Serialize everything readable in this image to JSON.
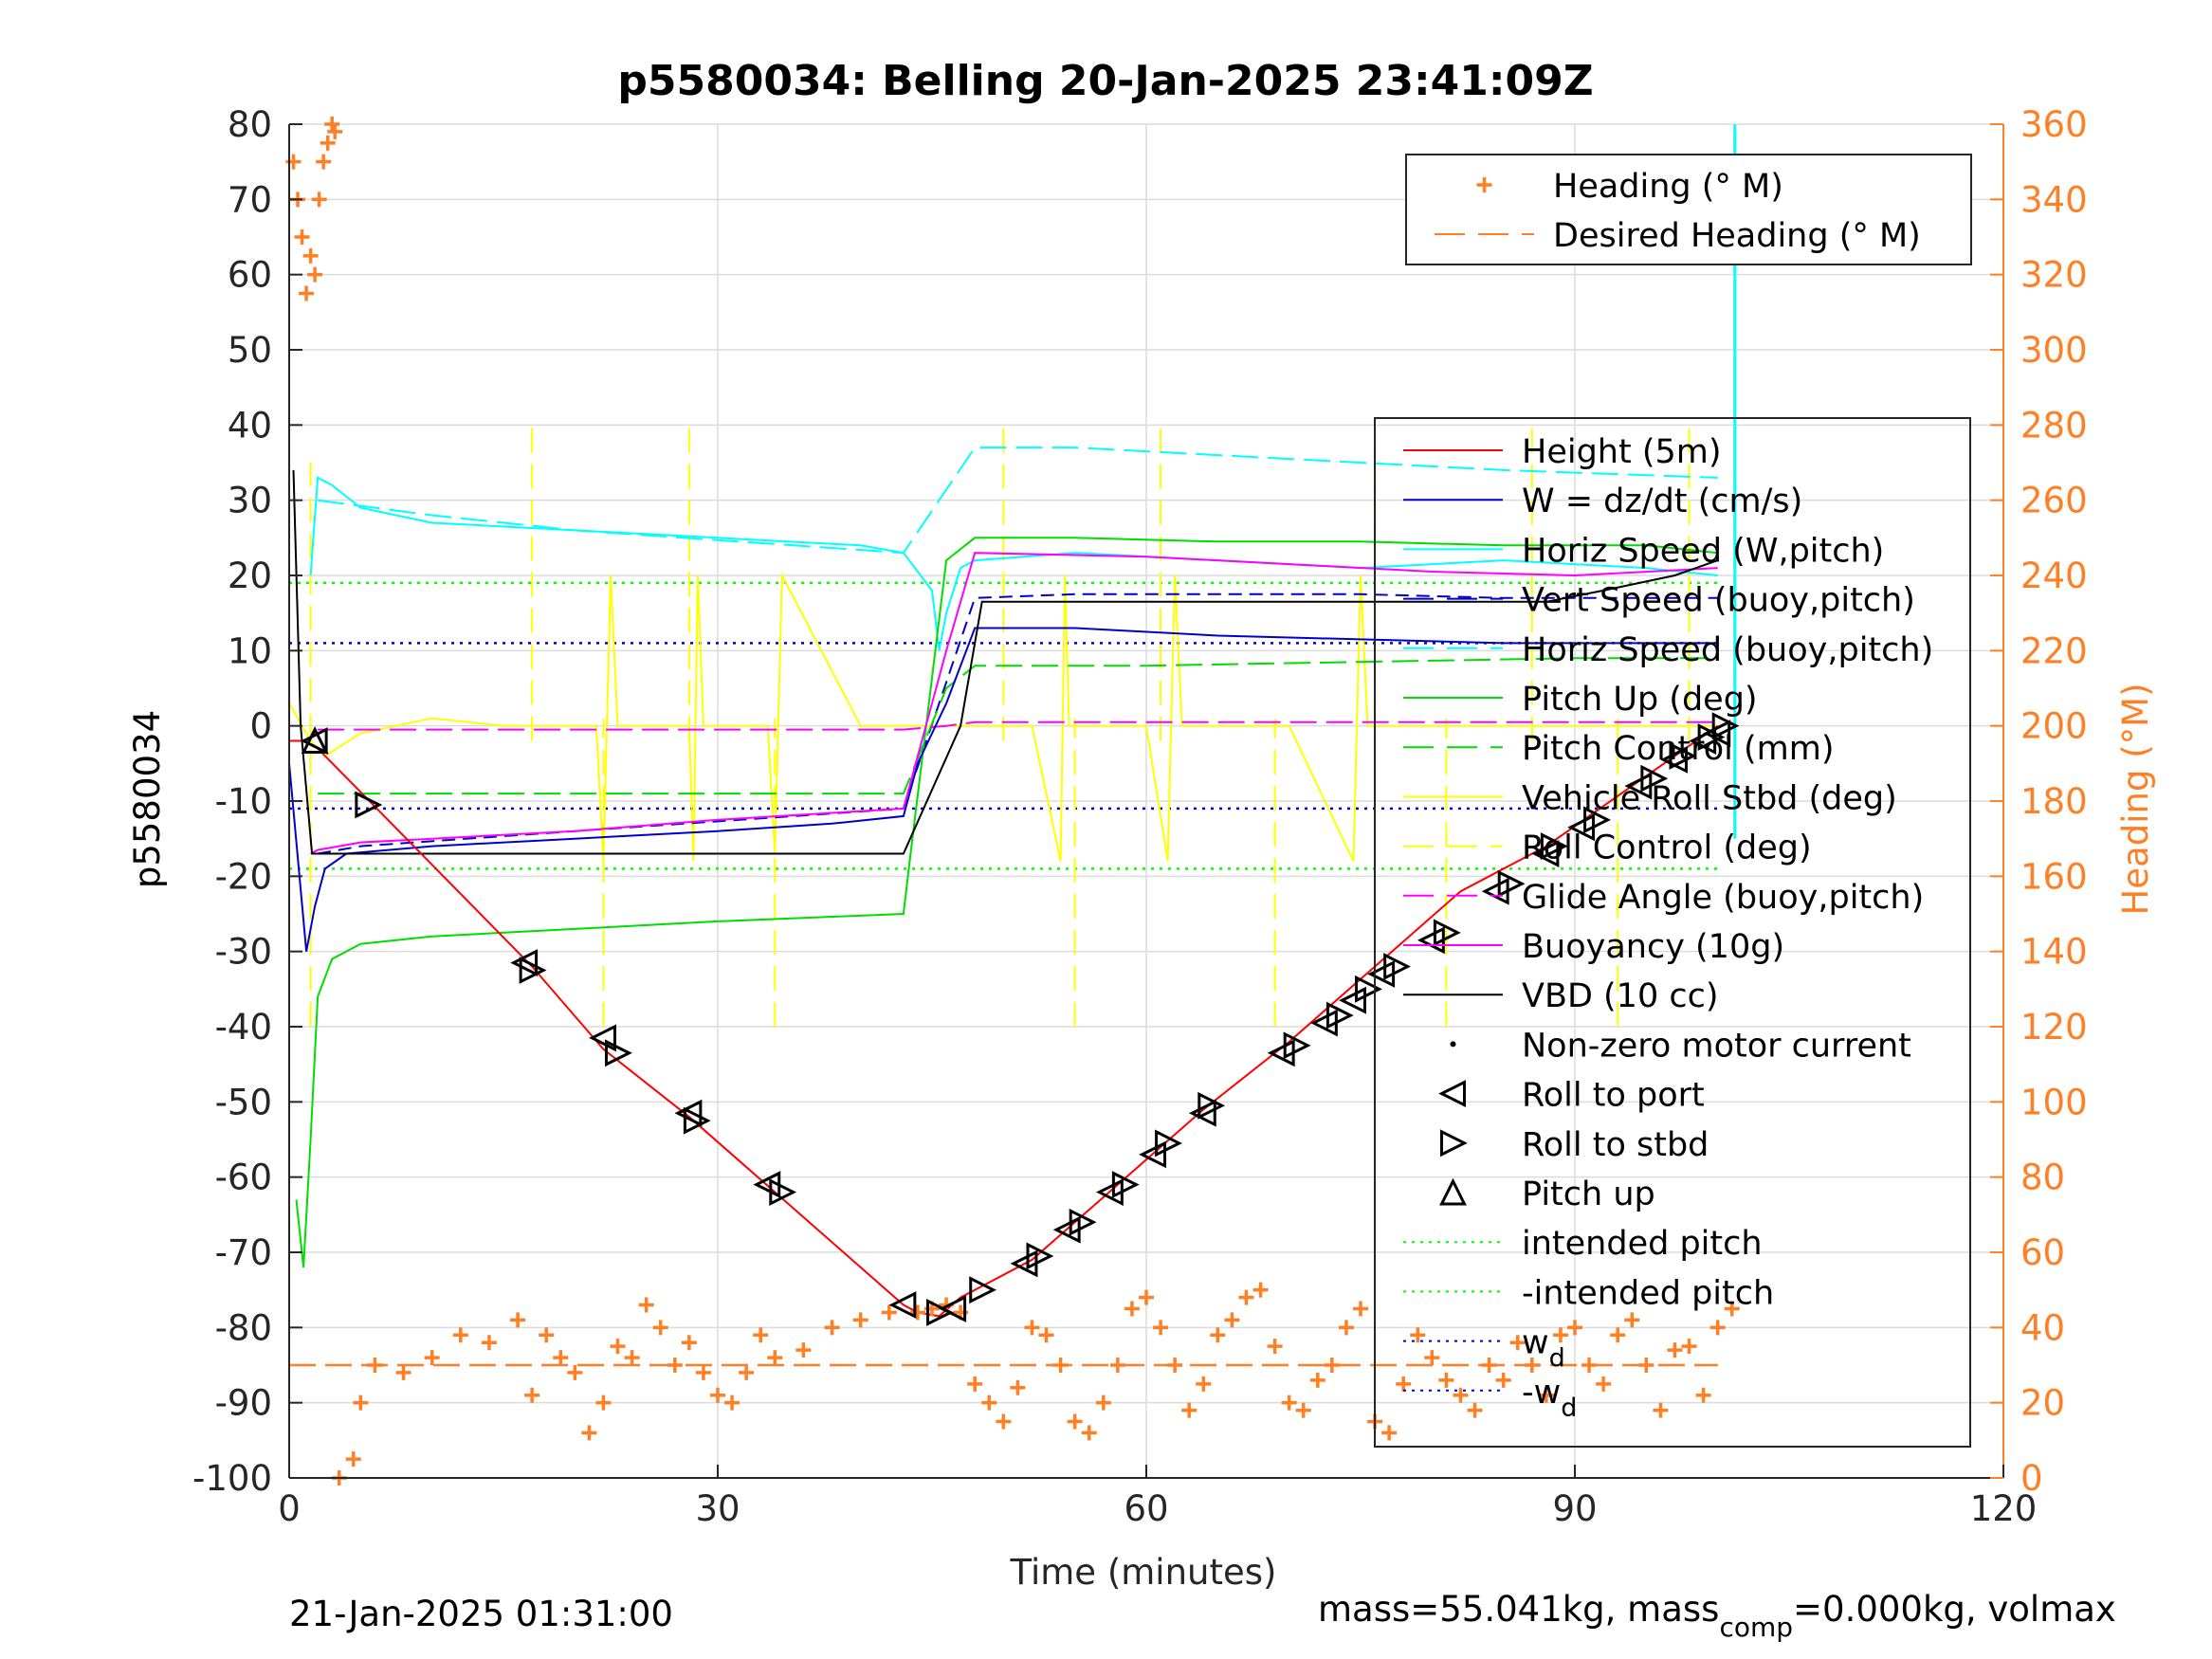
{
  "chart_data": {
    "type": "line",
    "title": "p5580034: Belling 20-Jan-2025 23:41:09Z",
    "xlabel": "Time (minutes)",
    "ylabel": "p5580034",
    "y2label": "Heading (°M)",
    "xlim": [
      0,
      120
    ],
    "ylim": [
      -100,
      80
    ],
    "y2lim": [
      0,
      360
    ],
    "xticks": [
      0,
      30,
      60,
      90,
      120
    ],
    "yticks": [
      -100,
      -90,
      -80,
      -70,
      -60,
      -50,
      -40,
      -30,
      -20,
      -10,
      0,
      10,
      20,
      30,
      40,
      50,
      60,
      70,
      80
    ],
    "y2ticks": [
      0,
      20,
      40,
      60,
      80,
      100,
      120,
      140,
      160,
      180,
      200,
      220,
      240,
      260,
      280,
      300,
      320,
      340,
      360
    ],
    "grid": true,
    "footer_left": "21-Jan-2025 01:31:00",
    "footer_right": {
      "prefix": "mass=55.041kg, mass",
      "sub": "comp",
      "suffix": "=0.000kg, volmax"
    },
    "legend_heading": [
      {
        "label": "Heading (° M)",
        "color": "#ff7f24",
        "style": "plus"
      },
      {
        "label": "Desired Heading (° M)",
        "color": "#ff7f24",
        "style": "dashed"
      }
    ],
    "legend_main": [
      {
        "label": "Height (5m)",
        "color": "#ff0000",
        "style": "solid"
      },
      {
        "label": "W = dz/dt (cm/s)",
        "color": "#0000cc",
        "style": "solid"
      },
      {
        "label": "Horiz Speed (W,pitch)",
        "color": "#00ffff",
        "style": "solid"
      },
      {
        "label": "Vert Speed (buoy,pitch)",
        "color": "#0000cc",
        "style": "dashed"
      },
      {
        "label": "Horiz Speed (buoy,pitch)",
        "color": "#00ffff",
        "style": "dashed"
      },
      {
        "label": "Pitch Up (deg)",
        "color": "#00dd00",
        "style": "solid"
      },
      {
        "label": "Pitch Control (mm)",
        "color": "#00dd00",
        "style": "dashed"
      },
      {
        "label": "Vehicle Roll Stbd (deg)",
        "color": "#ffff00",
        "style": "solid"
      },
      {
        "label": "Roll Control (deg)",
        "color": "#ffff00",
        "style": "dashed"
      },
      {
        "label": "Glide Angle (buoy,pitch)",
        "color": "#ff00ff",
        "style": "dashed"
      },
      {
        "label": "Buoyancy (10g)",
        "color": "#ff00ff",
        "style": "solid"
      },
      {
        "label": "VBD (10 cc)",
        "color": "#000000",
        "style": "solid"
      },
      {
        "label": "Non-zero motor current",
        "color": "#000000",
        "style": "dot"
      },
      {
        "label": "Roll to port",
        "color": "#000000",
        "style": "tri-left"
      },
      {
        "label": "Roll to stbd",
        "color": "#000000",
        "style": "tri-right"
      },
      {
        "label": "Pitch up",
        "color": "#000000",
        "style": "tri-up"
      },
      {
        "label": "intended pitch",
        "color": "#00ff00",
        "style": "dotted"
      },
      {
        "label": "-intended pitch",
        "color": "#00ff00",
        "style": "dotted"
      },
      {
        "label": "w",
        "sub": "d",
        "color": "#0000cc",
        "style": "dotted"
      },
      {
        "label": "-w",
        "sub": "d",
        "color": "#0000cc",
        "style": "dotted"
      }
    ],
    "series": [
      {
        "key": "height",
        "axis": "left",
        "color": "#ff0000",
        "dash": "",
        "x": [
          0,
          1,
          2,
          17,
          22,
          28,
          34,
          43,
          44,
          45.5,
          47,
          52,
          58,
          64,
          70,
          76,
          82,
          88,
          94,
          100
        ],
        "y": [
          -2,
          -2,
          -3,
          -32,
          -43,
          -52,
          -62,
          -77,
          -78,
          -78.5,
          -76,
          -71,
          -61,
          -51,
          -42,
          -32,
          -22,
          -16,
          -8,
          0
        ]
      },
      {
        "key": "w",
        "axis": "left",
        "color": "#0000cc",
        "dash": "",
        "x": [
          0,
          1.2,
          1.8,
          2.5,
          4,
          10,
          20,
          30,
          38,
          43,
          44,
          46,
          48,
          55,
          65,
          75,
          85,
          92,
          98,
          100
        ],
        "y": [
          -5,
          -30,
          -24,
          -19,
          -17,
          -16,
          -15,
          -14,
          -13,
          -12,
          -5,
          3,
          13,
          13,
          12,
          11.5,
          11,
          11,
          11,
          11
        ]
      },
      {
        "key": "horiz_speed_w",
        "axis": "left",
        "color": "#00ffff",
        "dash": "",
        "x": [
          1.5,
          2,
          3,
          5,
          10,
          20,
          30,
          40,
          43,
          45,
          45.5,
          46,
          47,
          48,
          55,
          65,
          75,
          85,
          95,
          100
        ],
        "y": [
          20,
          33,
          32,
          29,
          27,
          26,
          25,
          24,
          23,
          18,
          10,
          15,
          21,
          22,
          23,
          22,
          21,
          22,
          21,
          20
        ]
      },
      {
        "key": "vert_speed_buoy",
        "axis": "left",
        "color": "#0000cc",
        "dash": "14,8",
        "x": [
          2,
          5,
          20,
          43,
          48,
          55,
          65,
          75,
          85,
          100
        ],
        "y": [
          -17,
          -16,
          -14,
          -11,
          17,
          17.5,
          17.5,
          17.5,
          17,
          17
        ]
      },
      {
        "key": "horiz_speed_buoy",
        "axis": "left",
        "color": "#00ffff",
        "dash": "28,10",
        "x": [
          2,
          10,
          20,
          43,
          48,
          55,
          65,
          75,
          85,
          100
        ],
        "y": [
          30,
          28,
          26,
          23,
          37,
          37,
          36,
          35,
          34,
          33
        ]
      },
      {
        "key": "pitch_up",
        "axis": "left",
        "color": "#00dd00",
        "dash": "",
        "x": [
          0.5,
          1,
          1.5,
          2,
          3,
          5,
          10,
          20,
          30,
          43,
          43.5,
          46,
          48,
          55,
          65,
          75,
          85,
          95,
          100
        ],
        "y": [
          -63,
          -72,
          -55,
          -36,
          -31,
          -29,
          -28,
          -27,
          -26,
          -25,
          -17,
          22,
          25,
          25,
          24.5,
          24.5,
          24,
          24,
          23
        ]
      },
      {
        "key": "pitch_control",
        "axis": "left",
        "color": "#00dd00",
        "dash": "28,10",
        "x": [
          2,
          10,
          20,
          43,
          46,
          48,
          60,
          75,
          90,
          100
        ],
        "y": [
          -9,
          -9,
          -9,
          -9,
          5,
          8,
          8,
          8.5,
          9,
          9
        ]
      },
      {
        "key": "roll_stbd",
        "axis": "left",
        "color": "#ffff00",
        "dash": "",
        "x": [
          0,
          1.5,
          2.5,
          5,
          10,
          15,
          21.5,
          22,
          22.5,
          23,
          28,
          28.3,
          28.6,
          29,
          33.5,
          34,
          34.5,
          40,
          44,
          46,
          52,
          54,
          54.3,
          54.6,
          55,
          60,
          61.5,
          62,
          62.5,
          70,
          74.5,
          75,
          75.5,
          85,
          90,
          100
        ],
        "y": [
          3,
          -2,
          -4,
          -1,
          1,
          0,
          0,
          -18,
          20,
          0,
          0,
          -18,
          20,
          0,
          0,
          -17,
          20,
          0,
          0,
          0,
          0,
          -18,
          20,
          0,
          0,
          0,
          -18,
          20,
          0,
          0,
          -18,
          20,
          0,
          0,
          0,
          0
        ]
      },
      {
        "key": "glide_angle",
        "axis": "left",
        "color": "#ff00ff",
        "dash": "28,10",
        "x": [
          2,
          43,
          46,
          48,
          100
        ],
        "y": [
          -0.5,
          -0.5,
          0,
          0.5,
          0.5
        ]
      },
      {
        "key": "buoyancy",
        "axis": "left",
        "color": "#ff00ff",
        "dash": "",
        "x": [
          1.5,
          2,
          5,
          10,
          20,
          30,
          43,
          46,
          48,
          60,
          70,
          80,
          90,
          100
        ],
        "y": [
          -17,
          -16.5,
          -15.5,
          -15,
          -14,
          -12.5,
          -11,
          10,
          23,
          22.5,
          21.5,
          20.5,
          20,
          21
        ]
      },
      {
        "key": "vbd",
        "axis": "left",
        "color": "#000000",
        "dash": "",
        "x": [
          0.3,
          0.8,
          1.6,
          2,
          43,
          47,
          48.5,
          88,
          92,
          97,
          100
        ],
        "y": [
          34,
          0,
          -17,
          -17,
          -17,
          0,
          16.5,
          16.5,
          18,
          20,
          22
        ]
      },
      {
        "key": "intended_pitch",
        "axis": "left",
        "color": "#00ff00",
        "dash": "3,6",
        "x": [
          0,
          100
        ],
        "y": [
          19,
          19
        ]
      },
      {
        "key": "neg_intended_pitch",
        "axis": "left",
        "color": "#00ff00",
        "dash": "3,6",
        "x": [
          0,
          100
        ],
        "y": [
          -19,
          -19
        ]
      },
      {
        "key": "wd",
        "axis": "left",
        "color": "#0000cc",
        "dash": "3,6",
        "x": [
          0,
          100
        ],
        "y": [
          11,
          11
        ]
      },
      {
        "key": "neg_wd",
        "axis": "left",
        "color": "#0000cc",
        "dash": "3,6",
        "x": [
          0,
          100
        ],
        "y": [
          -11,
          -11
        ]
      },
      {
        "key": "desired_heading",
        "axis": "right",
        "color": "#ff7f24",
        "dash": "28,10",
        "x": [
          0,
          100
        ],
        "y": [
          30,
          30
        ]
      }
    ],
    "roll_control_spikes": [
      {
        "x": 1.5,
        "low": -40,
        "high": 35
      },
      {
        "x": 17,
        "low": -2,
        "high": 40
      },
      {
        "x": 22,
        "low": -40,
        "high": 1
      },
      {
        "x": 28,
        "low": -2,
        "high": 40
      },
      {
        "x": 34,
        "low": -40,
        "high": 1
      },
      {
        "x": 50,
        "low": -2,
        "high": 40
      },
      {
        "x": 55,
        "low": -40,
        "high": 1
      },
      {
        "x": 61,
        "low": -2,
        "high": 40
      },
      {
        "x": 69,
        "low": -40,
        "high": 1
      },
      {
        "x": 76,
        "low": -2,
        "high": 40
      },
      {
        "x": 81,
        "low": -40,
        "high": 1
      },
      {
        "x": 87,
        "low": -2,
        "high": 40
      },
      {
        "x": 93,
        "low": -40,
        "high": 1
      },
      {
        "x": 98,
        "low": -2,
        "high": 40
      }
    ],
    "heading": {
      "x": [
        0.3,
        0.6,
        0.9,
        1.2,
        1.5,
        1.8,
        2.1,
        2.4,
        2.7,
        3.0,
        3.2,
        3.5,
        4.5,
        5,
        6,
        8,
        10,
        12,
        14,
        16,
        17,
        18,
        19,
        20,
        21,
        22,
        23,
        24,
        25,
        26,
        27,
        28,
        29,
        30,
        31,
        32,
        33,
        34,
        36,
        38,
        40,
        42,
        44,
        45,
        46,
        47,
        48,
        49,
        50,
        51,
        52,
        53,
        54,
        55,
        56,
        57,
        58,
        59,
        60,
        61,
        62,
        63,
        64,
        65,
        66,
        67,
        68,
        69,
        70,
        71,
        72,
        73,
        74,
        75,
        76,
        77,
        78,
        79,
        80,
        81,
        82,
        83,
        84,
        85,
        86,
        87,
        88,
        89,
        90,
        91,
        92,
        93,
        94,
        95,
        96,
        97,
        98,
        99,
        100,
        101
      ],
      "y": [
        350,
        340,
        330,
        315,
        325,
        320,
        340,
        350,
        355,
        360,
        358,
        0,
        5,
        20,
        30,
        28,
        32,
        38,
        36,
        42,
        22,
        38,
        32,
        28,
        12,
        20,
        35,
        32,
        46,
        40,
        30,
        36,
        28,
        22,
        20,
        28,
        38,
        32,
        34,
        40,
        42,
        44,
        44,
        45,
        46,
        44,
        25,
        20,
        15,
        24,
        40,
        38,
        30,
        15,
        12,
        20,
        30,
        45,
        48,
        40,
        30,
        18,
        25,
        38,
        42,
        48,
        50,
        35,
        20,
        18,
        26,
        30,
        40,
        45,
        15,
        12,
        25,
        38,
        32,
        26,
        22,
        18,
        30,
        26,
        36,
        30,
        22,
        38,
        40,
        30,
        25,
        38,
        42,
        30,
        18,
        34,
        35,
        22,
        40,
        45
      ]
    },
    "marker_points": [
      {
        "x": 1.8,
        "y": -2,
        "m": "tri-up"
      },
      {
        "x": 1.8,
        "y": -2,
        "m": "tri-left"
      },
      {
        "x": 5.5,
        "y": -10.5,
        "m": "tri-right"
      },
      {
        "x": 16.5,
        "y": -31.5,
        "m": "tri-left"
      },
      {
        "x": 17,
        "y": -32.5,
        "m": "tri-right"
      },
      {
        "x": 22,
        "y": -41.5,
        "m": "tri-left"
      },
      {
        "x": 23,
        "y": -43.5,
        "m": "tri-right"
      },
      {
        "x": 28,
        "y": -51.5,
        "m": "tri-left"
      },
      {
        "x": 28.5,
        "y": -52.5,
        "m": "tri-right"
      },
      {
        "x": 33.5,
        "y": -61,
        "m": "tri-left"
      },
      {
        "x": 34.5,
        "y": -62,
        "m": "tri-right"
      },
      {
        "x": 43,
        "y": -77,
        "m": "tri-left"
      },
      {
        "x": 45.5,
        "y": -78,
        "m": "tri-right"
      },
      {
        "x": 46.5,
        "y": -77.5,
        "m": "tri-left"
      },
      {
        "x": 48.5,
        "y": -75,
        "m": "tri-right"
      },
      {
        "x": 51.5,
        "y": -71.5,
        "m": "tri-left"
      },
      {
        "x": 52.5,
        "y": -70.5,
        "m": "tri-right"
      },
      {
        "x": 54.5,
        "y": -67,
        "m": "tri-left"
      },
      {
        "x": 55.5,
        "y": -66,
        "m": "tri-right"
      },
      {
        "x": 57.5,
        "y": -62,
        "m": "tri-left"
      },
      {
        "x": 58.5,
        "y": -61,
        "m": "tri-right"
      },
      {
        "x": 60.5,
        "y": -57,
        "m": "tri-left"
      },
      {
        "x": 61.5,
        "y": -55.5,
        "m": "tri-right"
      },
      {
        "x": 64,
        "y": -51.5,
        "m": "tri-left"
      },
      {
        "x": 64.5,
        "y": -50.5,
        "m": "tri-right"
      },
      {
        "x": 69.5,
        "y": -43.5,
        "m": "tri-left"
      },
      {
        "x": 70.5,
        "y": -42.5,
        "m": "tri-right"
      },
      {
        "x": 72.5,
        "y": -39.5,
        "m": "tri-left"
      },
      {
        "x": 73.5,
        "y": -38.5,
        "m": "tri-right"
      },
      {
        "x": 74.5,
        "y": -36.5,
        "m": "tri-left"
      },
      {
        "x": 75.5,
        "y": -35,
        "m": "tri-right"
      },
      {
        "x": 76.5,
        "y": -33,
        "m": "tri-left"
      },
      {
        "x": 77.5,
        "y": -32,
        "m": "tri-right"
      },
      {
        "x": 80,
        "y": -28.5,
        "m": "tri-left"
      },
      {
        "x": 81,
        "y": -27.5,
        "m": "tri-right"
      },
      {
        "x": 84.5,
        "y": -22,
        "m": "tri-left"
      },
      {
        "x": 85.5,
        "y": -21,
        "m": "tri-right"
      },
      {
        "x": 88,
        "y": -17,
        "m": "tri-left"
      },
      {
        "x": 88.5,
        "y": -16,
        "m": "tri-right"
      },
      {
        "x": 90.5,
        "y": -13.5,
        "m": "tri-left"
      },
      {
        "x": 91.5,
        "y": -12.5,
        "m": "tri-right"
      },
      {
        "x": 94.5,
        "y": -8,
        "m": "tri-left"
      },
      {
        "x": 95.5,
        "y": -7,
        "m": "tri-right"
      },
      {
        "x": 97,
        "y": -4.5,
        "m": "tri-left"
      },
      {
        "x": 97.5,
        "y": -4,
        "m": "tri-right"
      },
      {
        "x": 99,
        "y": -2,
        "m": "tri-left"
      },
      {
        "x": 99.5,
        "y": -1.5,
        "m": "tri-right"
      },
      {
        "x": 100,
        "y": -1,
        "m": "tri-left"
      },
      {
        "x": 100.5,
        "y": 0,
        "m": "tri-right"
      }
    ],
    "end_spike": {
      "x": 101.2,
      "y_low": -15,
      "y_high": 80,
      "color": "#00ffff"
    }
  }
}
